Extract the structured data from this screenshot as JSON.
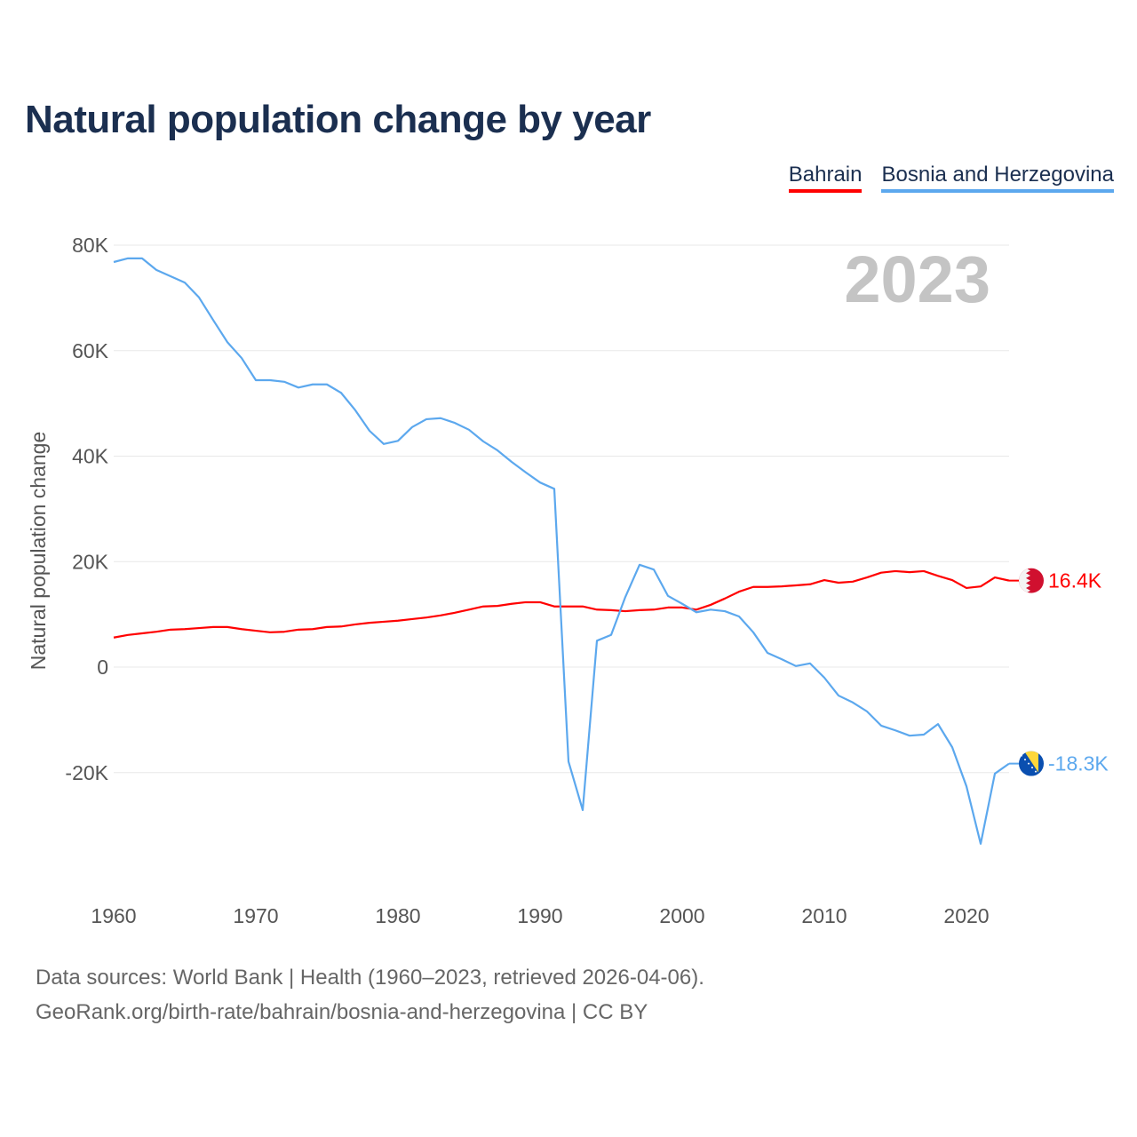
{
  "title": "Natural population change by year",
  "legend": [
    {
      "label": "Bahrain",
      "color": "#ff0000"
    },
    {
      "label": "Bosnia and Herzegovina",
      "color": "#5ca8ee"
    }
  ],
  "footer": {
    "line1": "Data sources: World Bank | Health (1960–2023, retrieved 2026-04-06).",
    "line2": "GeoRank.org/birth-rate/bahrain/bosnia-and-herzegovina | CC BY"
  },
  "chart_data": {
    "type": "line",
    "title": "Natural population change by year",
    "ylabel": "Natural population change",
    "xlabel": "",
    "watermark_year": "2023",
    "xlim": [
      1960,
      2023
    ],
    "ylim": [
      -40000,
      80000
    ],
    "grid": true,
    "legend_position": "top-right",
    "x_ticks": [
      1960,
      1970,
      1980,
      1990,
      2000,
      2010,
      2020
    ],
    "x_tick_labels": [
      "1960",
      "1970",
      "1980",
      "1990",
      "2000",
      "2010",
      "2020"
    ],
    "y_ticks": [
      80000,
      60000,
      40000,
      20000,
      0,
      -20000
    ],
    "y_tick_labels": [
      "80K",
      "60K",
      "40K",
      "20K",
      "0",
      "-20K"
    ],
    "x_start": 1960,
    "series": [
      {
        "name": "Bahrain",
        "color": "#ff0000",
        "end_label": "16.4K",
        "flag": "bahrain",
        "values": [
          5600,
          6100,
          6400,
          6700,
          7100,
          7200,
          7400,
          7600,
          7600,
          7200,
          6900,
          6600,
          6700,
          7100,
          7200,
          7600,
          7700,
          8100,
          8400,
          8600,
          8800,
          9100,
          9400,
          9800,
          10300,
          10900,
          11500,
          11600,
          12000,
          12300,
          12300,
          11500,
          11500,
          11500,
          10900,
          10800,
          10600,
          10800,
          10900,
          11300,
          11300,
          10900,
          11800,
          13000,
          14300,
          15200,
          15200,
          15300,
          15500,
          15700,
          16500,
          16000,
          16200,
          17000,
          17900,
          18200,
          18000,
          18200,
          17300,
          16500,
          15000,
          15300,
          17000,
          16400
        ]
      },
      {
        "name": "Bosnia and Herzegovina",
        "color": "#5ca8ee",
        "end_label": "-18.3K",
        "flag": "bosnia",
        "values": [
          76800,
          77500,
          77500,
          75300,
          74100,
          72900,
          70100,
          65800,
          61600,
          58600,
          54400,
          54400,
          54100,
          53000,
          53600,
          53600,
          52000,
          48700,
          44800,
          42300,
          42900,
          45500,
          47000,
          47200,
          46300,
          45000,
          42800,
          41100,
          38900,
          36900,
          35000,
          33800,
          -17900,
          -27100,
          5000,
          6100,
          13300,
          19400,
          18500,
          13500,
          12000,
          10400,
          10900,
          10600,
          9600,
          6600,
          2700,
          1500,
          200,
          700,
          -2000,
          -5400,
          -6700,
          -8400,
          -11100,
          -12000,
          -13000,
          -12800,
          -10800,
          -15200,
          -22600,
          -33500,
          -20200,
          -18300
        ]
      }
    ]
  }
}
